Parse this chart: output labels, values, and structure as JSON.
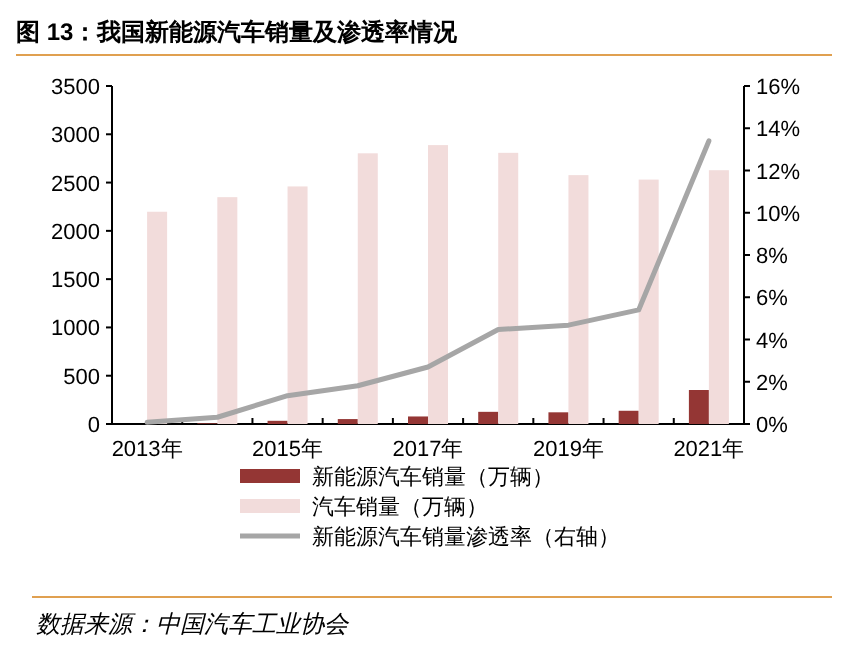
{
  "chart_data": {
    "type": "bar",
    "title": "图 13：我国新能源汽车销量及渗透率情况",
    "categories": [
      "2013年",
      null,
      "2015年",
      null,
      "2017年",
      null,
      "2019年",
      null,
      "2021年"
    ],
    "series": [
      {
        "name": "新能源汽车销量（万辆）",
        "color": "#943634",
        "values": [
          null,
          7.5,
          33,
          51,
          78,
          126,
          121,
          137,
          352
        ]
      },
      {
        "name": "汽车销量（万辆）",
        "color": "#f2dcdb",
        "values": [
          2198,
          2349,
          2460,
          2803,
          2888,
          2808,
          2577,
          2531,
          2628
        ]
      },
      {
        "name": "新能源汽车销量渗透率（右轴）",
        "type": "line",
        "axis": "y2",
        "color": "#a6a6a6",
        "values": [
          0.08,
          0.32,
          1.34,
          1.81,
          2.7,
          4.47,
          4.68,
          5.4,
          13.4
        ]
      }
    ],
    "ylim": [
      0,
      3500
    ],
    "yticks": [
      0,
      500,
      1000,
      1500,
      2000,
      2500,
      3000,
      3500
    ],
    "y2lim": [
      0,
      16
    ],
    "y2ticks": [
      {
        "value": 0,
        "label": "0%"
      },
      {
        "value": 2,
        "label": "2%"
      },
      {
        "value": 4,
        "label": "4%"
      },
      {
        "value": 6,
        "label": "6%"
      },
      {
        "value": 8,
        "label": "8%"
      },
      {
        "value": 10,
        "label": "10%"
      },
      {
        "value": 12,
        "label": "12%"
      },
      {
        "value": 14,
        "label": "14%"
      },
      {
        "value": 16,
        "label": "16%"
      }
    ],
    "legend": "bottom",
    "grid": false,
    "annotations": [
      "数据来源：中国汽车工业协会"
    ]
  }
}
